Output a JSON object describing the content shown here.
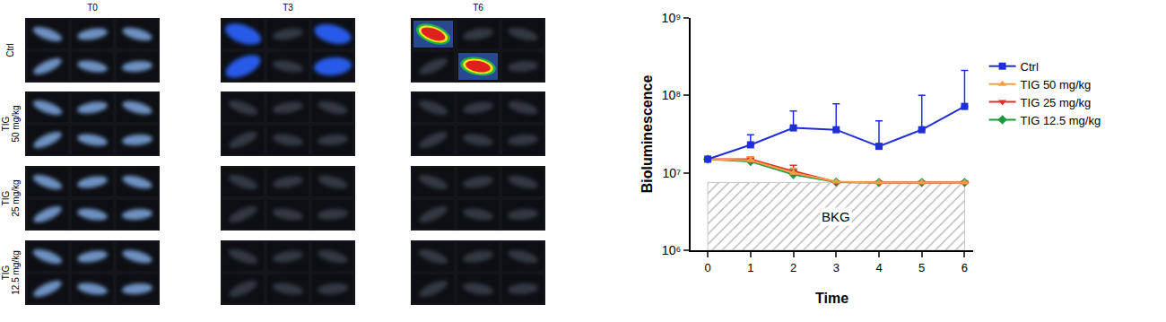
{
  "chart_data": {
    "type": "line",
    "x_label": "Time",
    "y_label": "Bioluminescence",
    "x": [
      0,
      1,
      2,
      3,
      4,
      5,
      6
    ],
    "xlim": [
      -0.4,
      6.2
    ],
    "xticks": [
      0,
      1,
      2,
      3,
      4,
      5,
      6
    ],
    "log": "y",
    "ylim": [
      1000000,
      1000000000
    ],
    "yticks": [
      {
        "value": 1000000,
        "label": "10⁶"
      },
      {
        "value": 10000000,
        "label": "10⁷"
      },
      {
        "value": 100000000,
        "label": "10⁸"
      },
      {
        "value": 1000000000,
        "label": "10⁹"
      }
    ],
    "grid": false,
    "legend": "right",
    "background": {
      "label": "BKG",
      "x": [
        0,
        6
      ],
      "y": 7500000
    },
    "series": [
      {
        "name": "Ctrl",
        "color": "#1f2fd8",
        "marker": "square",
        "values": [
          15000000,
          23000000,
          38000000,
          36000000,
          22000000,
          36000000,
          72000000
        ],
        "error": [
          0,
          8000000,
          25000000,
          42000000,
          25000000,
          64000000,
          138000000
        ]
      },
      {
        "name": "TIG 50 mg/kg",
        "color": "#f5a046",
        "marker": "triangle-up",
        "values": [
          15000000,
          14500000,
          10000000,
          7700000,
          7500000,
          7500000,
          7500000
        ],
        "error": [
          0,
          1500000,
          1500000,
          0,
          0,
          0,
          0
        ]
      },
      {
        "name": "TIG 25 mg/kg",
        "color": "#e3302a",
        "marker": "triangle-down",
        "values": [
          15000000,
          15000000,
          10500000,
          7600000,
          7500000,
          7500000,
          7500000
        ],
        "error": [
          0,
          1000000,
          2000000,
          0,
          0,
          0,
          0
        ]
      },
      {
        "name": "TIG 12.5 mg/kg",
        "color": "#1c9a3c",
        "marker": "diamond",
        "values": [
          15000000,
          14000000,
          9500000,
          7600000,
          7500000,
          7500000,
          7500000
        ],
        "error": [
          0,
          1500000,
          1500000,
          0,
          0,
          0,
          0
        ]
      }
    ]
  },
  "images": {
    "columns": [
      "T0",
      "T3",
      "T6"
    ],
    "rows": [
      [
        "Ctrl"
      ],
      [
        "TIG",
        "50 mg/kg"
      ],
      [
        "TIG",
        "25 mg/kg"
      ],
      [
        "TIG",
        "12.5 mg/kg"
      ]
    ]
  }
}
